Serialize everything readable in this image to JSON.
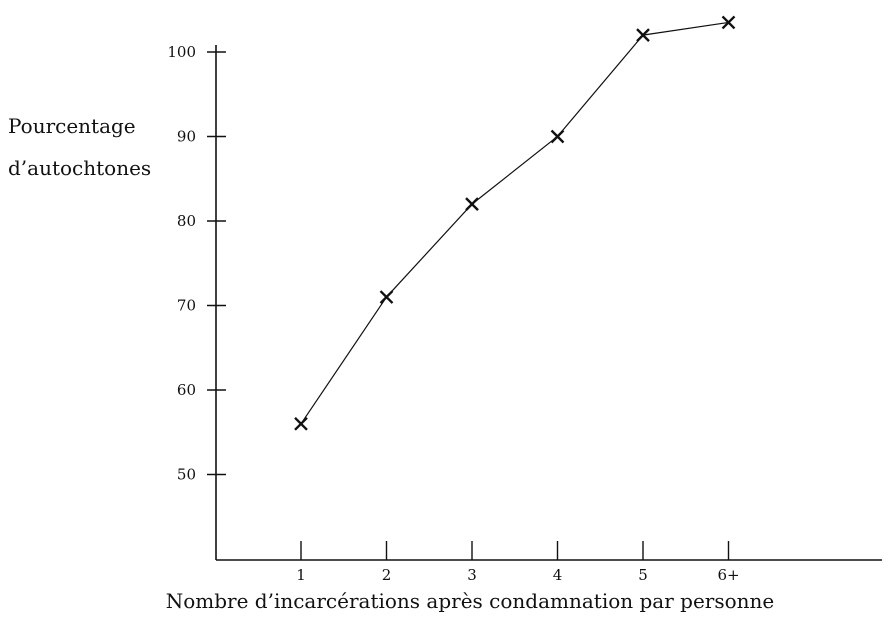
{
  "chart_data": {
    "type": "line",
    "title": "",
    "ylabel_lines": [
      "Pourcentage",
      "d’autochtones"
    ],
    "xlabel": "Nombre d’incarcérations après condamnation par personne",
    "categories": [
      "1",
      "2",
      "3",
      "4",
      "5",
      "6+"
    ],
    "x": [
      1,
      2,
      3,
      4,
      5,
      6
    ],
    "values": [
      56,
      71,
      82,
      90,
      102,
      103.5
    ],
    "ylim": [
      40,
      105
    ],
    "yticks": [
      50,
      60,
      70,
      80,
      90,
      100
    ],
    "grid": false,
    "legend": "none",
    "marker": "x",
    "line_color": "#111111"
  }
}
